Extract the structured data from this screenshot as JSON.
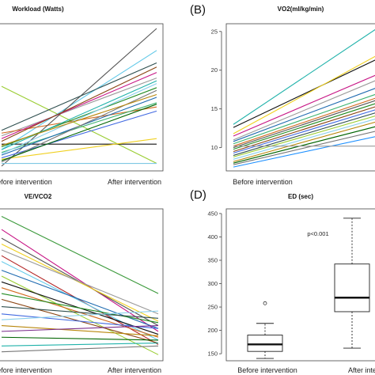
{
  "chart_data": [
    {
      "type": "line",
      "panel_label": "",
      "title": "Workload (Watts)",
      "categories": [
        "Before intervention",
        "After intervention"
      ],
      "series": [
        {
          "values": [
            0.58,
            0.02
          ],
          "color": "#9acd32"
        },
        {
          "values": [
            0.16,
            0.16
          ],
          "color": "#111111"
        },
        {
          "values": [
            0.22,
            0.64
          ],
          "color": "#999999"
        },
        {
          "values": [
            0.12,
            0.84
          ],
          "color": "#60c8e8"
        },
        {
          "values": [
            0.05,
            0.2
          ],
          "color": "#f0d020"
        },
        {
          "values": [
            0.24,
            0.43
          ],
          "color": "#d2691e"
        },
        {
          "values": [
            0.1,
            0.46
          ],
          "color": "#3cb371"
        },
        {
          "values": [
            0.0,
            1.0
          ],
          "color": "#555555"
        },
        {
          "values": [
            0.14,
            0.57
          ],
          "color": "#228b22"
        },
        {
          "values": [
            0.08,
            0.5
          ],
          "color": "#1e6ab0"
        },
        {
          "values": [
            0.2,
            0.68
          ],
          "color": "#c71585"
        },
        {
          "values": [
            0.06,
            0.4
          ],
          "color": "#4169e1"
        },
        {
          "values": [
            0.18,
            0.72
          ],
          "color": "#8b4513"
        },
        {
          "values": [
            0.12,
            0.62
          ],
          "color": "#20b2aa"
        },
        {
          "values": [
            0.03,
            0.55
          ],
          "color": "#777777"
        },
        {
          "values": [
            0.26,
            0.75
          ],
          "color": "#2f4f4f"
        },
        {
          "values": [
            0.09,
            0.6
          ],
          "color": "#87ceeb"
        },
        {
          "values": [
            0.15,
            0.52
          ],
          "color": "#b8860b"
        },
        {
          "values": [
            0.04,
            0.45
          ],
          "color": "#006400"
        },
        {
          "values": [
            0.02,
            0.02
          ],
          "color": "#7ec8e3"
        }
      ]
    },
    {
      "type": "line",
      "panel_label": "(B)",
      "title": "VO2(ml/kg/min)",
      "categories": [
        "Before intervention",
        "After intervention"
      ],
      "yticks": [
        10,
        15,
        20,
        25
      ],
      "ylim": [
        7,
        26
      ],
      "series": [
        {
          "values": [
            13.0,
            25.5
          ],
          "color": "#20b2aa"
        },
        {
          "values": [
            12.6,
            21.5
          ],
          "color": "#111111"
        },
        {
          "values": [
            11.8,
            22.0
          ],
          "color": "#f0d020"
        },
        {
          "values": [
            11.5,
            19.5
          ],
          "color": "#c71585"
        },
        {
          "values": [
            11.0,
            18.8
          ],
          "color": "#999999"
        },
        {
          "values": [
            10.8,
            17.8
          ],
          "color": "#1e6ab0"
        },
        {
          "values": [
            10.5,
            17.0
          ],
          "color": "#3cb371"
        },
        {
          "values": [
            10.2,
            16.5
          ],
          "color": "#d2691e"
        },
        {
          "values": [
            10.0,
            16.2
          ],
          "color": "#555555"
        },
        {
          "values": [
            9.8,
            15.8
          ],
          "color": "#228b22"
        },
        {
          "values": [
            9.5,
            15.4
          ],
          "color": "#8b4513"
        },
        {
          "values": [
            9.3,
            15.0
          ],
          "color": "#4169e1"
        },
        {
          "values": [
            9.0,
            14.6
          ],
          "color": "#2f4f4f"
        },
        {
          "values": [
            8.8,
            14.2
          ],
          "color": "#9acd32"
        },
        {
          "values": [
            8.5,
            13.8
          ],
          "color": "#87ceeb"
        },
        {
          "values": [
            8.2,
            13.4
          ],
          "color": "#b8860b"
        },
        {
          "values": [
            8.0,
            12.8
          ],
          "color": "#006400"
        },
        {
          "values": [
            7.8,
            12.2
          ],
          "color": "#777777"
        },
        {
          "values": [
            7.5,
            11.5
          ],
          "color": "#1e90ff"
        },
        {
          "values": [
            10.2,
            10.2
          ],
          "color": "#999999"
        }
      ]
    },
    {
      "type": "line",
      "panel_label": "",
      "title": "VE/VCO2",
      "categories": [
        "Before intervention",
        "After intervention"
      ],
      "series": [
        {
          "values": [
            0.97,
            0.44
          ],
          "color": "#3c9a3c"
        },
        {
          "values": [
            0.88,
            0.18
          ],
          "color": "#c71585"
        },
        {
          "values": [
            0.82,
            0.22
          ],
          "color": "#555555"
        },
        {
          "values": [
            0.78,
            0.25
          ],
          "color": "#f0d020"
        },
        {
          "values": [
            0.74,
            0.3
          ],
          "color": "#999999"
        },
        {
          "values": [
            0.7,
            0.09
          ],
          "color": "#b22222"
        },
        {
          "values": [
            0.66,
            0.12
          ],
          "color": "#60c8e8"
        },
        {
          "values": [
            0.6,
            0.2
          ],
          "color": "#1e6ab0"
        },
        {
          "values": [
            0.56,
            0.02
          ],
          "color": "#9acd32"
        },
        {
          "values": [
            0.52,
            0.16
          ],
          "color": "#111111"
        },
        {
          "values": [
            0.48,
            0.14
          ],
          "color": "#d2691e"
        },
        {
          "values": [
            0.44,
            0.24
          ],
          "color": "#228b22"
        },
        {
          "values": [
            0.4,
            0.1
          ],
          "color": "#8b4513"
        },
        {
          "values": [
            0.35,
            0.27
          ],
          "color": "#2f4f4f"
        },
        {
          "values": [
            0.3,
            0.2
          ],
          "color": "#4169e1"
        },
        {
          "values": [
            0.26,
            0.32
          ],
          "color": "#87ceeb"
        },
        {
          "values": [
            0.22,
            0.15
          ],
          "color": "#b8860b"
        },
        {
          "values": [
            0.18,
            0.22
          ],
          "color": "#7b2d8b"
        },
        {
          "values": [
            0.14,
            0.12
          ],
          "color": "#006400"
        },
        {
          "values": [
            0.08,
            0.1
          ],
          "color": "#20b2aa"
        },
        {
          "values": [
            0.04,
            0.08
          ],
          "color": "#777777"
        }
      ]
    },
    {
      "type": "box",
      "panel_label": "(D)",
      "title": "ED (sec)",
      "categories": [
        "Before intervention",
        "After intervention"
      ],
      "yticks": [
        150,
        200,
        250,
        300,
        350,
        400,
        450
      ],
      "ylim": [
        135,
        460
      ],
      "annotation": "p<0.001",
      "boxes": [
        {
          "whisker_low": 140,
          "q1": 155,
          "median": 170,
          "q3": 190,
          "whisker_high": 215,
          "outliers": [
            258
          ]
        },
        {
          "whisker_low": 162,
          "q1": 240,
          "median": 270,
          "q3": 342,
          "whisker_high": 440,
          "outliers": []
        }
      ]
    }
  ]
}
